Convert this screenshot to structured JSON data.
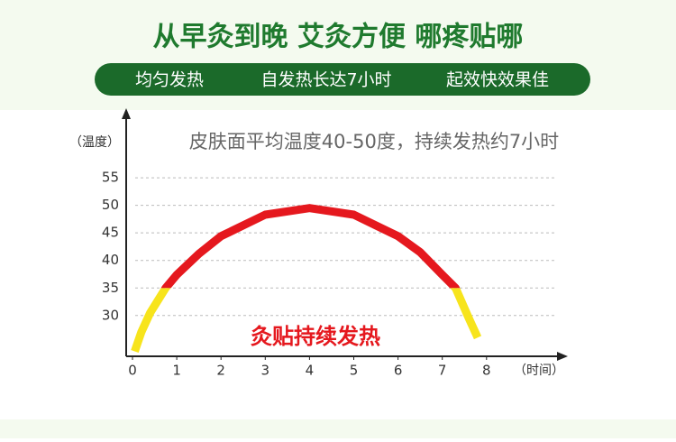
{
  "header": {
    "title": "从早灸到晚 艾灸方便 哪疼贴哪",
    "tags": [
      "均匀发热",
      "自发热长达7小时",
      "起效快效果佳"
    ]
  },
  "chart_data": {
    "type": "line",
    "subtitle": "皮肤面平均温度40-50度，持续发热约7小时",
    "y_label": "（温度）",
    "x_label": "（时间）",
    "annotation": "灸贴持续发热",
    "xlim": [
      0,
      9.7
    ],
    "xticks": [
      0,
      1,
      2,
      3,
      4,
      5,
      6,
      7,
      8
    ],
    "ylim": [
      22.6,
      66.8
    ],
    "yticks": [
      30,
      35,
      40,
      45,
      50,
      55
    ],
    "grid": true,
    "series": [
      {
        "name": "温度",
        "color": "#e5181e",
        "low_color": "#f7e41c",
        "color_threshold": 35,
        "x": [
          0.05,
          0.2,
          0.4,
          0.75,
          1,
          1.5,
          2,
          3,
          4,
          5,
          6,
          6.5,
          7,
          7.3,
          7.6,
          7.8
        ],
        "values": [
          23.5,
          27,
          30.5,
          35,
          37.4,
          41.2,
          44.4,
          48.3,
          49.5,
          48.3,
          44.4,
          41.5,
          37.4,
          35,
          29.5,
          26
        ]
      }
    ]
  }
}
